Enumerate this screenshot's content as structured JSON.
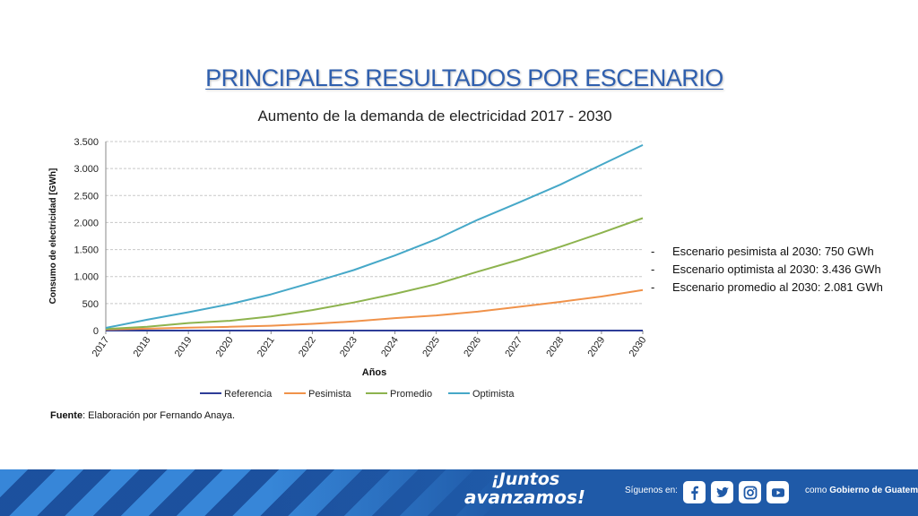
{
  "slide": {
    "title": "PRINCIPALES RESULTADOS POR ESCENARIO",
    "chart_title": "Aumento de la demanda de electricidad 2017 - 2030",
    "notes": [
      "Escenario pesimista al 2030: 750 GWh",
      "Escenario optimista al 2030: 3.436 GWh",
      "Escenario promedio al 2030: 2.081 GWh"
    ],
    "note_dash": "-",
    "source_label": "Fuente",
    "source_text": ": Elaboración por Fernando Anaya."
  },
  "footer": {
    "slogan_line1": "¡Juntos",
    "slogan_line2": "avanzamos!",
    "follow_label": "Síguenos en:",
    "social_icons": [
      "facebook-icon",
      "twitter-icon",
      "instagram-icon",
      "youtube-icon"
    ],
    "handle_prefix": "como",
    "handle_name": "Gobierno de Guatemala",
    "background_color": "#1f5aa8"
  },
  "chart_data": {
    "type": "line",
    "title": "Aumento de la demanda de electricidad 2017 - 2030",
    "xlabel": "Años",
    "ylabel": "Consumo de electricidad [GWh]",
    "categories": [
      "2017",
      "2018",
      "2019",
      "2020",
      "2021",
      "2022",
      "2023",
      "2024",
      "2025",
      "2026",
      "2027",
      "2028",
      "2029",
      "2030"
    ],
    "ylim": [
      0,
      3500
    ],
    "yticks": [
      0,
      500,
      1000,
      1500,
      2000,
      2500,
      3000,
      3500
    ],
    "ytick_labels": [
      "0",
      "500",
      "1.000",
      "1.500",
      "2.000",
      "2.500",
      "3.000",
      "3.500"
    ],
    "grid": true,
    "legend_position": "bottom",
    "series": [
      {
        "name": "Referencia",
        "color": "#2e3d98",
        "values": [
          0,
          0,
          0,
          0,
          0,
          0,
          0,
          0,
          0,
          0,
          0,
          0,
          0,
          0
        ]
      },
      {
        "name": "Pesimista",
        "color": "#f0924a",
        "values": [
          20,
          35,
          55,
          70,
          90,
          125,
          170,
          230,
          280,
          350,
          440,
          530,
          630,
          750
        ]
      },
      {
        "name": "Promedio",
        "color": "#8db34e",
        "values": [
          30,
          70,
          140,
          180,
          260,
          380,
          520,
          680,
          860,
          1090,
          1310,
          1550,
          1810,
          2081
        ]
      },
      {
        "name": "Optimista",
        "color": "#46a8c8",
        "values": [
          50,
          200,
          340,
          490,
          670,
          890,
          1120,
          1390,
          1690,
          2050,
          2370,
          2700,
          3070,
          3436
        ]
      }
    ]
  }
}
